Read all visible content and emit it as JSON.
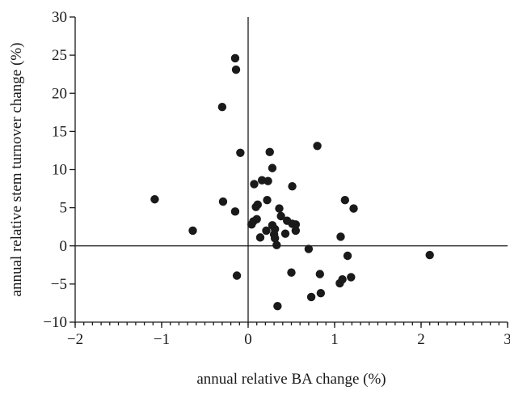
{
  "chart_data": {
    "type": "scatter",
    "title": "",
    "xlabel": "annual relative BA change (%)",
    "ylabel": "annual relative stem turnover change (%)",
    "xlim": [
      -2,
      3
    ],
    "ylim": [
      -10,
      30
    ],
    "xticks": [
      -2,
      -1,
      0,
      1,
      2,
      3
    ],
    "yticks": [
      -10,
      -5,
      0,
      5,
      10,
      15,
      20,
      25,
      30
    ],
    "xtick_labels": [
      "−2",
      "−1",
      "0",
      "1",
      "2",
      "3"
    ],
    "ytick_labels": [
      "−10",
      "−5",
      "0",
      "5",
      "10",
      "15",
      "20",
      "25",
      "30"
    ],
    "x_minor_step": 0.1,
    "grid": false,
    "reference_lines": {
      "x": 0,
      "y": 0
    },
    "marker_color": "#1a1a1a",
    "points": [
      {
        "x": -1.08,
        "y": 6.1
      },
      {
        "x": -0.64,
        "y": 2.0
      },
      {
        "x": -0.3,
        "y": 18.2
      },
      {
        "x": -0.29,
        "y": 5.8
      },
      {
        "x": -0.15,
        "y": 24.6
      },
      {
        "x": -0.14,
        "y": 23.1
      },
      {
        "x": -0.15,
        "y": 4.5
      },
      {
        "x": -0.13,
        "y": -3.9
      },
      {
        "x": -0.09,
        "y": 12.2
      },
      {
        "x": 0.04,
        "y": 2.8
      },
      {
        "x": 0.06,
        "y": 3.2
      },
      {
        "x": 0.07,
        "y": 8.1
      },
      {
        "x": 0.09,
        "y": 5.1
      },
      {
        "x": 0.1,
        "y": 3.5
      },
      {
        "x": 0.11,
        "y": 5.4
      },
      {
        "x": 0.14,
        "y": 1.1
      },
      {
        "x": 0.16,
        "y": 8.6
      },
      {
        "x": 0.21,
        "y": 2.0
      },
      {
        "x": 0.22,
        "y": 6.0
      },
      {
        "x": 0.23,
        "y": 8.5
      },
      {
        "x": 0.25,
        "y": 12.3
      },
      {
        "x": 0.28,
        "y": 10.2
      },
      {
        "x": 0.28,
        "y": 2.7
      },
      {
        "x": 0.3,
        "y": 1.5
      },
      {
        "x": 0.31,
        "y": 1.0
      },
      {
        "x": 0.31,
        "y": 2.2
      },
      {
        "x": 0.33,
        "y": 0.1
      },
      {
        "x": 0.34,
        "y": -7.9
      },
      {
        "x": 0.36,
        "y": 4.9
      },
      {
        "x": 0.38,
        "y": 3.9
      },
      {
        "x": 0.43,
        "y": 1.6
      },
      {
        "x": 0.45,
        "y": 3.3
      },
      {
        "x": 0.5,
        "y": -3.5
      },
      {
        "x": 0.51,
        "y": 7.8
      },
      {
        "x": 0.51,
        "y": 2.9
      },
      {
        "x": 0.55,
        "y": 2.0
      },
      {
        "x": 0.55,
        "y": 2.8
      },
      {
        "x": 0.7,
        "y": -0.4
      },
      {
        "x": 0.73,
        "y": -6.7
      },
      {
        "x": 0.8,
        "y": 13.1
      },
      {
        "x": 0.83,
        "y": -3.7
      },
      {
        "x": 0.84,
        "y": -6.2
      },
      {
        "x": 1.06,
        "y": -4.9
      },
      {
        "x": 1.07,
        "y": 1.2
      },
      {
        "x": 1.09,
        "y": -4.4
      },
      {
        "x": 1.12,
        "y": 6.0
      },
      {
        "x": 1.15,
        "y": -1.3
      },
      {
        "x": 1.19,
        "y": -4.1
      },
      {
        "x": 1.22,
        "y": 4.9
      },
      {
        "x": 2.1,
        "y": -1.2
      }
    ]
  }
}
